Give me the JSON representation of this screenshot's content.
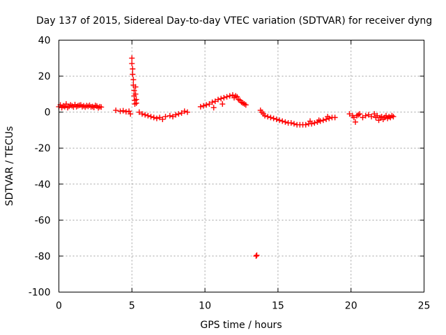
{
  "chart_data": {
    "type": "scatter",
    "title": "Day 137 of 2015, Sidereal Day-to-day VTEC variation (SDTVAR) for receiver dyng",
    "xlabel": "GPS time / hours",
    "ylabel": "SDTVAR / TECUs",
    "xlim": [
      0,
      25
    ],
    "ylim": [
      -100,
      40
    ],
    "x_ticks": [
      0,
      5,
      10,
      15,
      20,
      25
    ],
    "y_ticks": [
      40,
      20,
      0,
      -20,
      -40,
      -60,
      -80,
      -100
    ],
    "grid": true,
    "series": [
      {
        "name": "SDTVAR",
        "color": "#ff0000",
        "marker": "plus",
        "points": [
          [
            0.0,
            3.0
          ],
          [
            0.1,
            4.0
          ],
          [
            0.2,
            2.5
          ],
          [
            0.3,
            3.5
          ],
          [
            0.4,
            3.0
          ],
          [
            0.5,
            4.5
          ],
          [
            0.6,
            2.5
          ],
          [
            0.7,
            3.2
          ],
          [
            0.8,
            4.0
          ],
          [
            0.9,
            3.5
          ],
          [
            1.0,
            2.8
          ],
          [
            1.1,
            4.2
          ],
          [
            1.2,
            3.0
          ],
          [
            1.3,
            3.5
          ],
          [
            1.4,
            3.8
          ],
          [
            1.5,
            4.0
          ],
          [
            1.6,
            3.0
          ],
          [
            1.7,
            3.5
          ],
          [
            1.8,
            2.8
          ],
          [
            1.9,
            3.6
          ],
          [
            2.0,
            3.2
          ],
          [
            2.1,
            3.8
          ],
          [
            2.2,
            2.9
          ],
          [
            2.3,
            3.1
          ],
          [
            2.4,
            2.6
          ],
          [
            2.5,
            3.7
          ],
          [
            2.6,
            3.3
          ],
          [
            2.7,
            2.4
          ],
          [
            2.8,
            3.0
          ],
          [
            2.9,
            2.8
          ],
          [
            3.9,
            1.0
          ],
          [
            4.2,
            0.5
          ],
          [
            4.4,
            0.8
          ],
          [
            4.6,
            0.2
          ],
          [
            4.8,
            0.5
          ],
          [
            4.9,
            -1.0
          ],
          [
            5.0,
            30.0
          ],
          [
            5.0,
            27.0
          ],
          [
            5.05,
            24.0
          ],
          [
            5.05,
            21.0
          ],
          [
            5.1,
            18.0
          ],
          [
            5.1,
            15.0
          ],
          [
            5.15,
            12.0
          ],
          [
            5.15,
            9.0
          ],
          [
            5.2,
            6.5
          ],
          [
            5.2,
            4.5
          ],
          [
            5.25,
            14.0
          ],
          [
            5.25,
            10.0
          ],
          [
            5.3,
            7.0
          ],
          [
            5.3,
            5.0
          ],
          [
            5.5,
            0.0
          ],
          [
            5.7,
            -1.0
          ],
          [
            5.9,
            -1.5
          ],
          [
            6.1,
            -2.0
          ],
          [
            6.3,
            -2.5
          ],
          [
            6.5,
            -3.0
          ],
          [
            6.7,
            -3.5
          ],
          [
            6.9,
            -3.0
          ],
          [
            7.1,
            -4.0
          ],
          [
            7.3,
            -2.5
          ],
          [
            7.6,
            -2.0
          ],
          [
            7.8,
            -2.5
          ],
          [
            8.0,
            -1.5
          ],
          [
            8.2,
            -1.0
          ],
          [
            8.4,
            -0.5
          ],
          [
            8.6,
            0.5
          ],
          [
            8.8,
            0.0
          ],
          [
            9.7,
            3.0
          ],
          [
            9.9,
            3.5
          ],
          [
            10.1,
            4.0
          ],
          [
            10.3,
            4.5
          ],
          [
            10.5,
            5.5
          ],
          [
            10.7,
            6.0
          ],
          [
            10.9,
            7.0
          ],
          [
            11.1,
            7.5
          ],
          [
            11.3,
            8.0
          ],
          [
            11.5,
            8.5
          ],
          [
            11.7,
            9.0
          ],
          [
            11.9,
            9.5
          ],
          [
            12.0,
            8.0
          ],
          [
            12.1,
            9.0
          ],
          [
            12.2,
            8.5
          ],
          [
            12.3,
            7.0
          ],
          [
            12.4,
            6.5
          ],
          [
            12.5,
            5.5
          ],
          [
            12.6,
            5.0
          ],
          [
            12.7,
            4.5
          ],
          [
            12.8,
            4.0
          ],
          [
            10.6,
            2.5
          ],
          [
            11.2,
            4.5
          ],
          [
            13.5,
            -80.0
          ],
          [
            13.55,
            -79.5
          ],
          [
            13.8,
            1.0
          ],
          [
            13.9,
            0.0
          ],
          [
            14.0,
            -1.0
          ],
          [
            14.1,
            -2.0
          ],
          [
            14.3,
            -2.5
          ],
          [
            14.5,
            -3.0
          ],
          [
            14.7,
            -3.5
          ],
          [
            14.9,
            -4.0
          ],
          [
            15.1,
            -4.5
          ],
          [
            15.3,
            -5.0
          ],
          [
            15.5,
            -5.5
          ],
          [
            15.7,
            -6.0
          ],
          [
            15.9,
            -6.0
          ],
          [
            16.1,
            -6.5
          ],
          [
            16.3,
            -7.0
          ],
          [
            16.5,
            -7.0
          ],
          [
            16.7,
            -7.0
          ],
          [
            16.9,
            -7.0
          ],
          [
            17.1,
            -6.5
          ],
          [
            17.3,
            -6.5
          ],
          [
            17.5,
            -6.0
          ],
          [
            17.7,
            -5.5
          ],
          [
            17.9,
            -5.0
          ],
          [
            18.1,
            -4.5
          ],
          [
            18.3,
            -4.0
          ],
          [
            18.5,
            -3.5
          ],
          [
            18.7,
            -3.0
          ],
          [
            18.9,
            -3.0
          ],
          [
            17.2,
            -5.0
          ],
          [
            17.8,
            -4.5
          ],
          [
            18.4,
            -2.5
          ],
          [
            19.9,
            -1.0
          ],
          [
            20.1,
            -2.0
          ],
          [
            20.2,
            -3.0
          ],
          [
            20.3,
            -5.5
          ],
          [
            20.4,
            -2.0
          ],
          [
            20.5,
            -1.5
          ],
          [
            20.6,
            -1.0
          ],
          [
            20.8,
            -3.0
          ],
          [
            21.0,
            -2.0
          ],
          [
            21.2,
            -1.5
          ],
          [
            21.4,
            -2.5
          ],
          [
            21.6,
            -1.0
          ],
          [
            21.7,
            -3.0
          ],
          [
            21.8,
            -2.0
          ],
          [
            21.9,
            -4.5
          ],
          [
            22.0,
            -3.0
          ],
          [
            22.1,
            -2.5
          ],
          [
            22.2,
            -4.0
          ],
          [
            22.3,
            -3.0
          ],
          [
            22.4,
            -2.0
          ],
          [
            22.5,
            -3.5
          ],
          [
            22.6,
            -2.5
          ],
          [
            22.7,
            -3.0
          ],
          [
            22.8,
            -2.0
          ],
          [
            22.9,
            -2.5
          ]
        ]
      }
    ]
  }
}
